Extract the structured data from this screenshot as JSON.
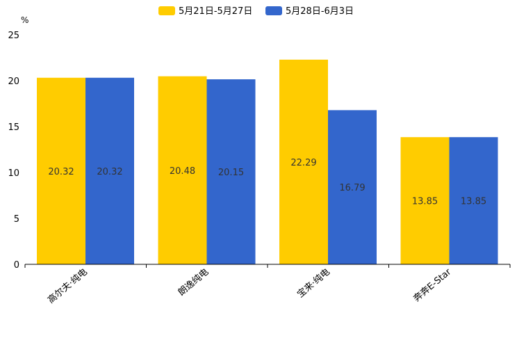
{
  "chart_data": {
    "type": "bar",
    "title": "",
    "ylabel": "%",
    "xlabel": "",
    "ylim": [
      0,
      25
    ],
    "yticks": [
      0,
      5,
      10,
      15,
      20,
      25
    ],
    "categories": [
      "高尔夫·纯电",
      "朗逸纯电",
      "宝来·纯电",
      "奔奔E-Star"
    ],
    "series": [
      {
        "name": "5月21日-5月27日",
        "color": "#FFCC00",
        "values": [
          20.32,
          20.48,
          22.29,
          13.85
        ]
      },
      {
        "name": "5月28日-6月3日",
        "color": "#3366CC",
        "values": [
          20.32,
          20.15,
          16.79,
          13.85
        ]
      }
    ],
    "legend_position": "top-center"
  }
}
